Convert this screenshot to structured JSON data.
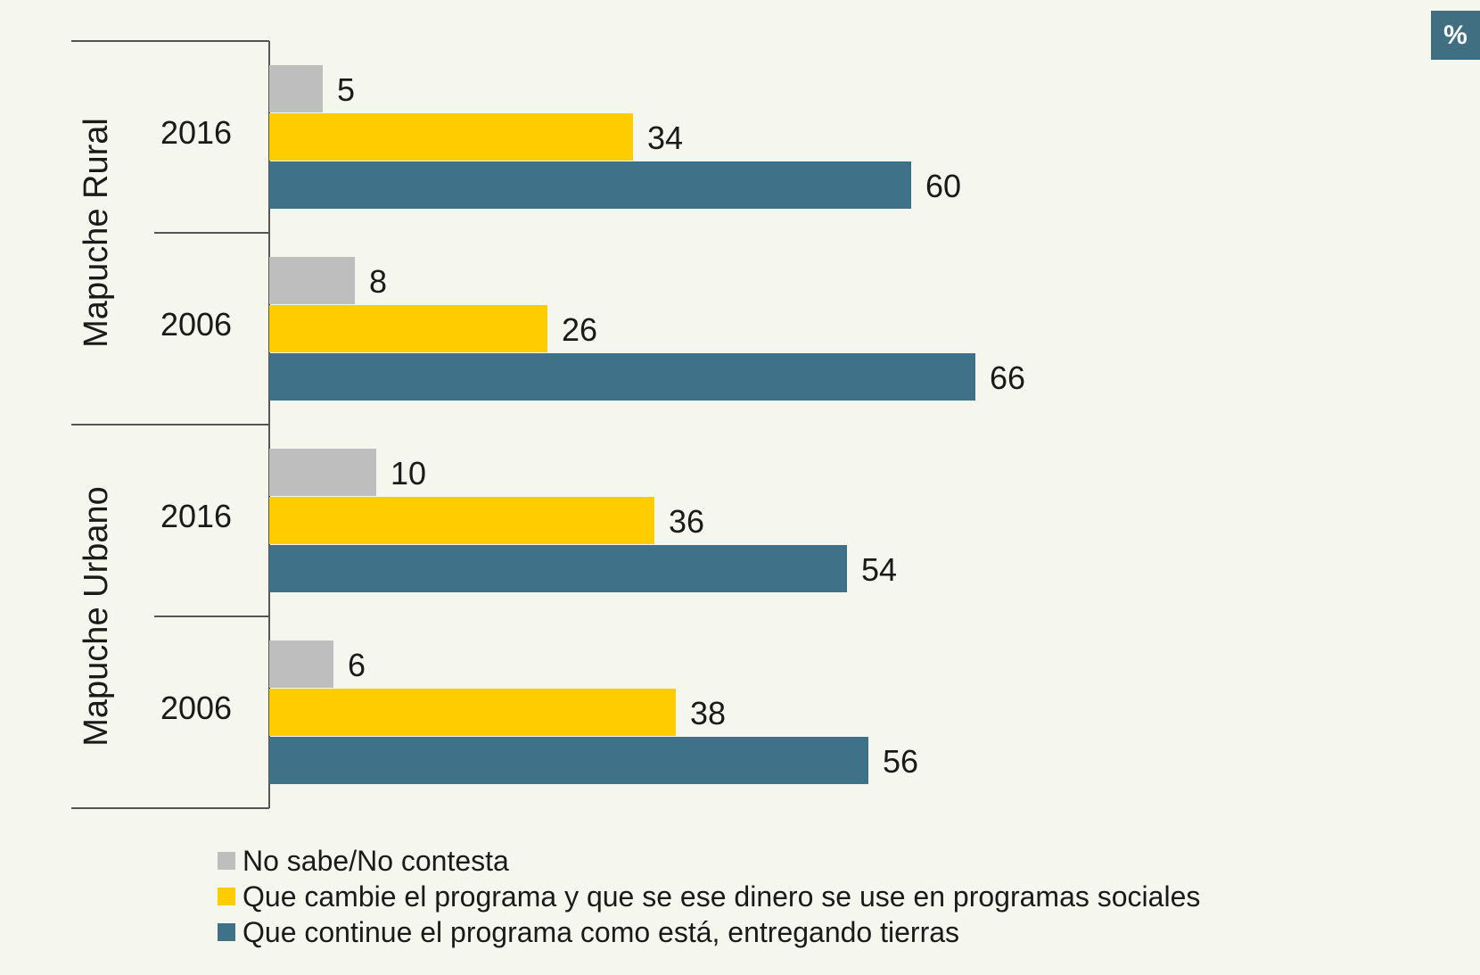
{
  "unit_badge": "%",
  "colors": {
    "background": "#f5f6ee",
    "no_sabe": "#bebebe",
    "que_cambie": "#ffcc00",
    "que_continue": "#3f7188",
    "axis": "#555555",
    "badge": "#3f6f80"
  },
  "chart_data": {
    "type": "bar",
    "orientation": "horizontal",
    "title": "",
    "xlabel": "",
    "ylabel": "",
    "xlim": [
      0,
      100
    ],
    "grid": false,
    "legend_position": "bottom",
    "groups": [
      {
        "name": "Mapuche Rural",
        "categories": [
          {
            "year": "2016",
            "values": [
              5,
              34,
              60
            ]
          },
          {
            "year": "2006",
            "values": [
              8,
              26,
              66
            ]
          }
        ]
      },
      {
        "name": "Mapuche Urbano",
        "categories": [
          {
            "year": "2016",
            "values": [
              10,
              36,
              54
            ]
          },
          {
            "year": "2006",
            "values": [
              6,
              38,
              56
            ]
          }
        ]
      }
    ],
    "series": [
      {
        "name": "No sabe/No contesta",
        "color": "#bebebe"
      },
      {
        "name": "Que cambie el programa y que se ese dinero se use en programas sociales",
        "color": "#ffcc00"
      },
      {
        "name": "Que continue el programa como está, entregando tierras",
        "color": "#3f7188"
      }
    ]
  }
}
